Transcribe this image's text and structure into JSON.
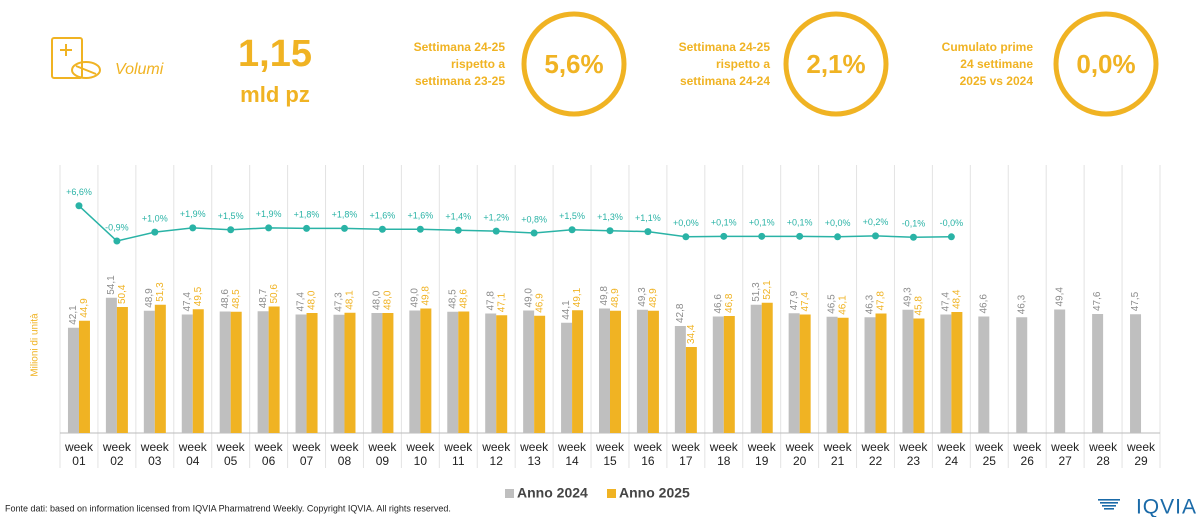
{
  "header": {
    "label": "Volumi",
    "value": "1,15",
    "unit": "mld pz",
    "kpis": [
      {
        "lines": [
          "Settimana 24-25",
          "rispetto a",
          "settimana 23-25"
        ],
        "value": "5,6%"
      },
      {
        "lines": [
          "Settimana 24-25",
          "rispetto a",
          "settimana 24-24"
        ],
        "value": "2,1%"
      },
      {
        "lines": [
          "Cumulato prime",
          "24 settimane",
          "2025 vs 2024"
        ],
        "value": "0,0%"
      }
    ]
  },
  "chart_data": {
    "type": "bar",
    "y_label": "Milioni di unità",
    "categories": [
      "week 01",
      "week 02",
      "week 03",
      "week 04",
      "week 05",
      "week 06",
      "week 07",
      "week 08",
      "week 09",
      "week 10",
      "week 11",
      "week 12",
      "week 13",
      "week 14",
      "week 15",
      "week 16",
      "week 17",
      "week 18",
      "week 19",
      "week 20",
      "week 21",
      "week 22",
      "week 23",
      "week 24",
      "week 25",
      "week 26",
      "week 27",
      "week 28",
      "week 29"
    ],
    "ylim": [
      0,
      100
    ],
    "y2lim": [
      -6,
      14
    ],
    "series": [
      {
        "name": "Anno 2024",
        "color": "#bfbfbf",
        "values": [
          42.1,
          54.1,
          48.9,
          47.4,
          48.6,
          48.7,
          47.4,
          47.3,
          48.0,
          49.0,
          48.5,
          47.8,
          49.0,
          44.1,
          49.8,
          49.3,
          42.8,
          46.6,
          51.3,
          47.9,
          46.5,
          46.3,
          49.3,
          47.4,
          46.6,
          46.3,
          49.4,
          47.6,
          47.5
        ],
        "value_labels": [
          "42,1",
          "54,1",
          "48,9",
          "47,4",
          "48,6",
          "48,7",
          "47,4",
          "47,3",
          "48,0",
          "49,0",
          "48,5",
          "47,8",
          "49,0",
          "44,1",
          "49,8",
          "49,3",
          "42,8",
          "46,6",
          "51,3",
          "47,9",
          "46,5",
          "46,3",
          "49,3",
          "47,4",
          "46,6",
          "46,3",
          "49,4",
          "47,6",
          "47,5"
        ]
      },
      {
        "name": "Anno 2025",
        "color": "#f0b323",
        "values": [
          44.9,
          50.4,
          51.3,
          49.5,
          48.5,
          50.6,
          48.0,
          48.1,
          48.0,
          49.8,
          48.6,
          47.1,
          46.9,
          49.1,
          48.9,
          48.9,
          34.4,
          46.8,
          52.1,
          47.4,
          46.1,
          47.8,
          45.8,
          48.4,
          null,
          null,
          null,
          null,
          null
        ],
        "value_labels": [
          "44,9",
          "50,4",
          "51,3",
          "49,5",
          "48,5",
          "50,6",
          "48,0",
          "48,1",
          "48,0",
          "49,8",
          "48,6",
          "47,1",
          "46,9",
          "49,1",
          "48,9",
          "48,9",
          "34,4",
          "46,8",
          "52,1",
          "47,4",
          "46,1",
          "47,8",
          "45,8",
          "48,4",
          null,
          null,
          null,
          null,
          null
        ]
      },
      {
        "type": "line",
        "axis": "y2",
        "color": "#2ab3a6",
        "values": [
          6.6,
          -0.9,
          1.0,
          1.9,
          1.5,
          1.9,
          1.8,
          1.8,
          1.6,
          1.6,
          1.4,
          1.2,
          0.8,
          1.5,
          1.3,
          1.1,
          0.0,
          0.1,
          0.1,
          0.1,
          0.0,
          0.2,
          -0.1,
          0,
          null,
          null,
          null,
          null,
          null
        ],
        "value_labels": [
          "+6,6%",
          "-0,9%",
          "+1,0%",
          "+1,9%",
          "+1,5%",
          "+1,9%",
          "+1,8%",
          "+1,8%",
          "+1,6%",
          "+1,6%",
          "+1,4%",
          "+1,2%",
          "+0,8%",
          "+1,5%",
          "+1,3%",
          "+1,1%",
          "+0,0%",
          "+0,1%",
          "+0,1%",
          "+0,1%",
          "+0,0%",
          "+0,2%",
          "-0,1%",
          "-0,0%",
          null,
          null,
          null,
          null,
          null
        ]
      }
    ],
    "legend": "bottom",
    "source": "Fonte dati: based on information licensed from IQVIA Pharmatrend Weekly. Copyright IQVIA. All rights reserved.",
    "logo": "IQVIA"
  }
}
